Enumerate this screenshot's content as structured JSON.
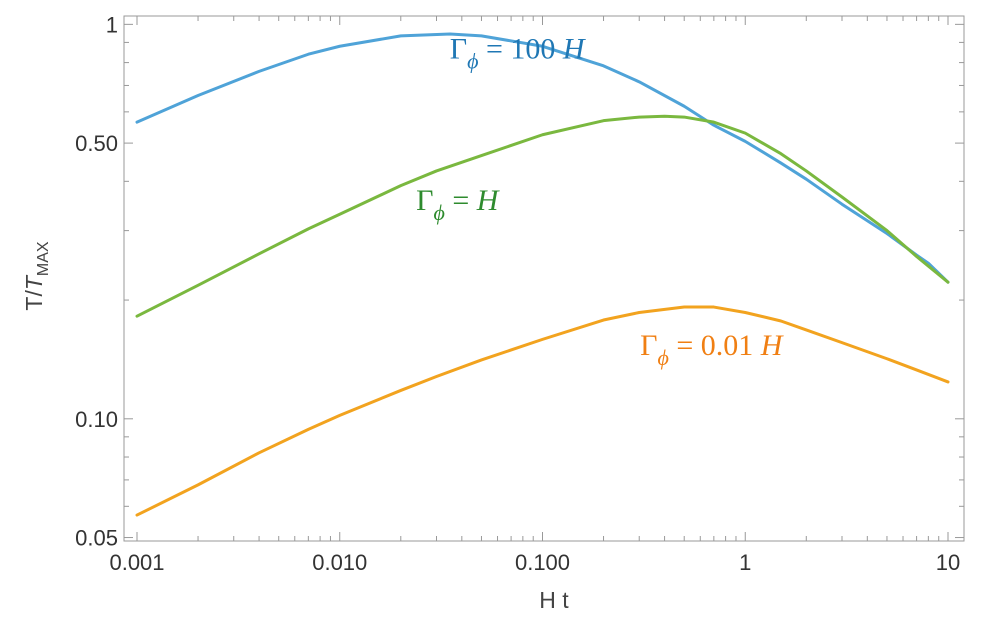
{
  "chart_data": {
    "type": "line",
    "title": "",
    "xlabel": "H t",
    "ylabel": {
      "main": "T/",
      "italic": "T",
      "sub": "MAX"
    },
    "xscale": "log",
    "yscale": "log",
    "xlim": [
      0.001,
      10
    ],
    "ylim": [
      0.049,
      1.05
    ],
    "grid": false,
    "frame": true,
    "x_ticks": [
      {
        "value": 0.001,
        "label": "0.001"
      },
      {
        "value": 0.01,
        "label": "0.010"
      },
      {
        "value": 0.1,
        "label": "0.100"
      },
      {
        "value": 1,
        "label": "1"
      },
      {
        "value": 10,
        "label": "10"
      }
    ],
    "y_ticks": [
      {
        "value": 1,
        "label": "1"
      },
      {
        "value": 0.5,
        "label": "0.50"
      },
      {
        "value": 0.1,
        "label": "0.10"
      },
      {
        "value": 0.05,
        "label": "0.05"
      }
    ],
    "series": [
      {
        "name": "Γφ = 100 H",
        "label_parts": {
          "gamma": "Γ",
          "sub": "ϕ",
          "rest": " = 100 ",
          "h": "H"
        },
        "color": "#4fa3d8",
        "label_color": "#1f77b4",
        "x": [
          0.001,
          0.002,
          0.004,
          0.007,
          0.01,
          0.02,
          0.035,
          0.05,
          0.1,
          0.2,
          0.3,
          0.5,
          0.7,
          1,
          1.5,
          2,
          3,
          5,
          7,
          8,
          10
        ],
        "y": [
          0.565,
          0.66,
          0.76,
          0.84,
          0.88,
          0.935,
          0.945,
          0.935,
          0.88,
          0.785,
          0.715,
          0.62,
          0.555,
          0.505,
          0.445,
          0.405,
          0.35,
          0.295,
          0.26,
          0.248,
          0.222
        ]
      },
      {
        "name": "Γφ = H",
        "label_parts": {
          "gamma": "Γ",
          "sub": "ϕ",
          "rest": " = ",
          "h": "H"
        },
        "color": "#7ab83f",
        "label_color": "#2e8b2e",
        "x": [
          0.001,
          0.002,
          0.004,
          0.007,
          0.01,
          0.02,
          0.03,
          0.05,
          0.1,
          0.2,
          0.3,
          0.4,
          0.5,
          0.7,
          1,
          1.5,
          2,
          3,
          5,
          7,
          10
        ],
        "y": [
          0.182,
          0.218,
          0.262,
          0.303,
          0.33,
          0.39,
          0.425,
          0.465,
          0.525,
          0.57,
          0.582,
          0.585,
          0.582,
          0.565,
          0.53,
          0.47,
          0.425,
          0.365,
          0.3,
          0.258,
          0.222
        ]
      },
      {
        "name": "Γφ = 0.01 H",
        "label_parts": {
          "gamma": "Γ",
          "sub": "ϕ",
          "rest": " = 0.01 ",
          "h": "H"
        },
        "color": "#f2a31f",
        "label_color": "#f07f13",
        "x": [
          0.001,
          0.002,
          0.004,
          0.007,
          0.01,
          0.02,
          0.03,
          0.05,
          0.1,
          0.2,
          0.3,
          0.5,
          0.7,
          1,
          1.5,
          2,
          3,
          5,
          7,
          10
        ],
        "y": [
          0.057,
          0.068,
          0.082,
          0.094,
          0.102,
          0.118,
          0.128,
          0.141,
          0.159,
          0.178,
          0.186,
          0.192,
          0.192,
          0.186,
          0.177,
          0.168,
          0.156,
          0.142,
          0.133,
          0.124
        ]
      }
    ],
    "annotations": [
      {
        "series": 0,
        "x": 0.075,
        "y": 0.82,
        "anchor": "middle"
      },
      {
        "series": 1,
        "x": 0.038,
        "y": 0.338,
        "anchor": "middle"
      },
      {
        "series": 2,
        "x": 0.68,
        "y": 0.145,
        "anchor": "middle"
      }
    ]
  }
}
